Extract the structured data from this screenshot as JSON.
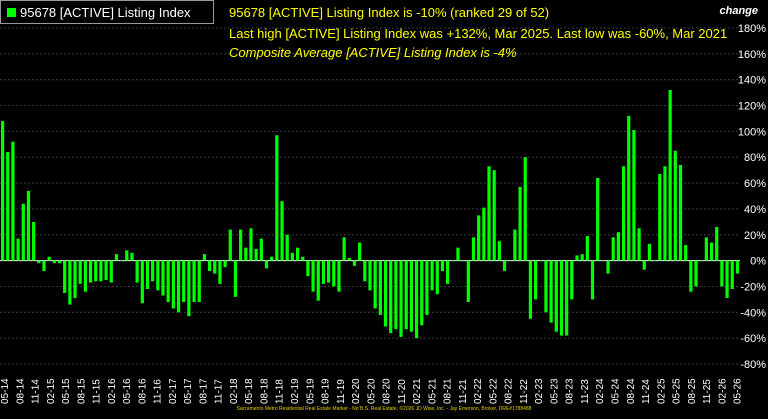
{
  "legend": {
    "label": "95678 [ACTIVE] Listing Index",
    "color": "#00ff00"
  },
  "info": {
    "line1": "95678 [ACTIVE] Listing Index is -10% (ranked 29 of 52)",
    "line2": "Last high [ACTIVE] Listing Index was +132%, Mar 2025. Last low was -60%, Mar 2021",
    "line3": "Composite Average [ACTIVE] Listing Index is -4%"
  },
  "axis_title": "change",
  "footer": "Sacramento Metro Residential Real Estate Market - No B.S. Real Estate, ©2026 JD Wise, Inc. - Jay Emerson, Broker, DRE#1788488",
  "chart_data": {
    "type": "bar",
    "series": [
      {
        "name": "95678 [ACTIVE] Listing Index",
        "color": "#00ff00"
      }
    ],
    "ylim": [
      -80,
      180
    ],
    "yticks": [
      180,
      160,
      140,
      120,
      100,
      80,
      60,
      40,
      20,
      0,
      -20,
      -40,
      -60,
      -80
    ],
    "ytick_labels": [
      "180%",
      "160%",
      "140%",
      "120%",
      "100%",
      "80%",
      "60%",
      "40%",
      "20%",
      "0%",
      "-20%",
      "-40%",
      "-60%",
      "-80%"
    ],
    "grid": true,
    "legend_position": "top-left",
    "xtick_labels": [
      "05-14",
      "08-14",
      "11-14",
      "02-15",
      "05-15",
      "08-15",
      "11-15",
      "02-16",
      "05-16",
      "08-16",
      "11-16",
      "02-17",
      "05-17",
      "08-17",
      "11-17",
      "02-18",
      "05-18",
      "08-18",
      "11-18",
      "02-19",
      "05-19",
      "08-19",
      "11-19",
      "02-20",
      "05-20",
      "08-20",
      "11-20",
      "02-21",
      "05-21",
      "08-21",
      "11-21",
      "02-22",
      "05-22",
      "08-22",
      "11-22",
      "02-23",
      "05-23",
      "08-23",
      "11-23",
      "02-24",
      "05-24",
      "08-24",
      "11-24",
      "02-25",
      "05-25",
      "08-25",
      "11-25",
      "02-26",
      "05-26"
    ],
    "values": [
      108,
      84,
      92,
      17,
      44,
      54,
      30,
      -2,
      -8,
      3,
      -2,
      -2,
      -25,
      -34,
      -29,
      -18,
      -24,
      -17,
      -16,
      -16,
      -15,
      -17,
      5,
      0,
      8,
      6,
      -17,
      -33,
      -22,
      -16,
      -23,
      -27,
      -32,
      -37,
      -40,
      -32,
      -43,
      -32,
      -32,
      5,
      -8,
      -10,
      -18,
      -5,
      24,
      -28,
      24,
      10,
      25,
      9,
      17,
      -6,
      3,
      97,
      46,
      20,
      6,
      10,
      3,
      -12,
      -24,
      -31,
      -18,
      -17,
      -20,
      -24,
      18,
      2,
      -4,
      14,
      -16,
      -23,
      -37,
      -42,
      -51,
      -56,
      -53,
      -59,
      -53,
      -55,
      -60,
      -50,
      -42,
      -23,
      -26,
      -8,
      -18,
      0,
      10,
      0,
      -32,
      18,
      35,
      41,
      73,
      70,
      15,
      -8,
      0,
      24,
      57,
      80,
      -45,
      -30,
      0,
      -40,
      -48,
      -55,
      -58,
      -58,
      -30,
      4,
      5,
      19,
      -30,
      64,
      0,
      -10,
      18,
      22,
      73,
      112,
      101,
      25,
      -7,
      13,
      0,
      67,
      73,
      132,
      85,
      74,
      12,
      -24,
      -20,
      0,
      18,
      14,
      26,
      -20,
      -29,
      -22,
      -10
    ]
  }
}
